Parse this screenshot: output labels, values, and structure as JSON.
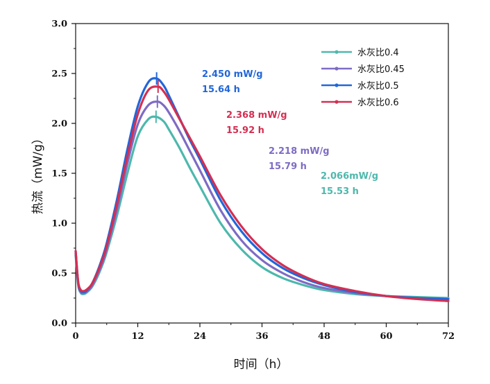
{
  "chart_data": {
    "type": "line",
    "title": "",
    "xlabel": "时间（h）",
    "ylabel": "热流（mW/g）",
    "xlim": [
      0,
      72
    ],
    "ylim": [
      0.0,
      3.0
    ],
    "xticks": [
      "0",
      "12",
      "24",
      "36",
      "48",
      "60",
      "72"
    ],
    "yticks": [
      "0.0",
      "0.5",
      "1.0",
      "1.5",
      "2.0",
      "2.5",
      "3.0"
    ],
    "grid": false,
    "legend_position": "top-right",
    "series": [
      {
        "name": "水灰比0.4",
        "color": "#4db8ac",
        "x": [
          0,
          0.5,
          1,
          1.5,
          2,
          3,
          4,
          5,
          6,
          8,
          10,
          12,
          14,
          15.53,
          17,
          18,
          20,
          22,
          24,
          28,
          32,
          36,
          40,
          44,
          48,
          54,
          60,
          66,
          72
        ],
        "y": [
          0.68,
          0.38,
          0.3,
          0.29,
          0.3,
          0.35,
          0.44,
          0.56,
          0.71,
          1.08,
          1.5,
          1.87,
          2.04,
          2.066,
          2.02,
          1.94,
          1.76,
          1.56,
          1.37,
          1.0,
          0.74,
          0.56,
          0.45,
          0.38,
          0.33,
          0.29,
          0.27,
          0.26,
          0.25
        ]
      },
      {
        "name": "水灰比0.45",
        "color": "#7e6bc4",
        "x": [
          0,
          0.5,
          1,
          1.5,
          2,
          3,
          4,
          5,
          6,
          8,
          10,
          12,
          14,
          15.79,
          17,
          18,
          20,
          22,
          24,
          28,
          32,
          36,
          40,
          44,
          48,
          54,
          60,
          66,
          72
        ],
        "y": [
          0.7,
          0.39,
          0.31,
          0.3,
          0.31,
          0.36,
          0.46,
          0.58,
          0.74,
          1.14,
          1.6,
          1.99,
          2.18,
          2.218,
          2.18,
          2.11,
          1.93,
          1.73,
          1.53,
          1.13,
          0.83,
          0.63,
          0.5,
          0.41,
          0.35,
          0.3,
          0.27,
          0.25,
          0.24
        ]
      },
      {
        "name": "水灰比0.5",
        "color": "#2166d9",
        "x": [
          0,
          0.5,
          1,
          1.5,
          2,
          3,
          4,
          5,
          6,
          8,
          10,
          12,
          14,
          15.64,
          17,
          18,
          20,
          22,
          24,
          28,
          32,
          36,
          40,
          44,
          48,
          54,
          60,
          66,
          72
        ],
        "y": [
          0.72,
          0.4,
          0.32,
          0.31,
          0.32,
          0.38,
          0.49,
          0.63,
          0.8,
          1.24,
          1.74,
          2.17,
          2.41,
          2.45,
          2.38,
          2.28,
          2.06,
          1.84,
          1.64,
          1.23,
          0.92,
          0.7,
          0.55,
          0.45,
          0.38,
          0.31,
          0.27,
          0.25,
          0.24
        ]
      },
      {
        "name": "水灰比0.6",
        "color": "#d32f52",
        "x": [
          0,
          0.5,
          1,
          1.5,
          2,
          3,
          4,
          5,
          6,
          8,
          10,
          12,
          14,
          15.92,
          17,
          18,
          20,
          22,
          24,
          28,
          32,
          36,
          40,
          44,
          48,
          54,
          60,
          66,
          72
        ],
        "y": [
          0.72,
          0.41,
          0.33,
          0.32,
          0.33,
          0.38,
          0.48,
          0.61,
          0.77,
          1.19,
          1.67,
          2.09,
          2.33,
          2.368,
          2.32,
          2.24,
          2.05,
          1.86,
          1.67,
          1.28,
          0.97,
          0.74,
          0.58,
          0.47,
          0.39,
          0.32,
          0.27,
          0.24,
          0.22
        ]
      }
    ],
    "annotations": [
      {
        "line1": "2.450 mW/g",
        "line2": "15.64 h",
        "color": "#2166d9"
      },
      {
        "line1": "2.368 mW/g",
        "line2": "15.92 h",
        "color": "#d32f52"
      },
      {
        "line1": "2.218 mW/g",
        "line2": "15.79 h",
        "color": "#7e6bc4"
      },
      {
        "line1": "2.066mW/g",
        "line2": "15.53 h",
        "color": "#4db8ac"
      }
    ]
  }
}
